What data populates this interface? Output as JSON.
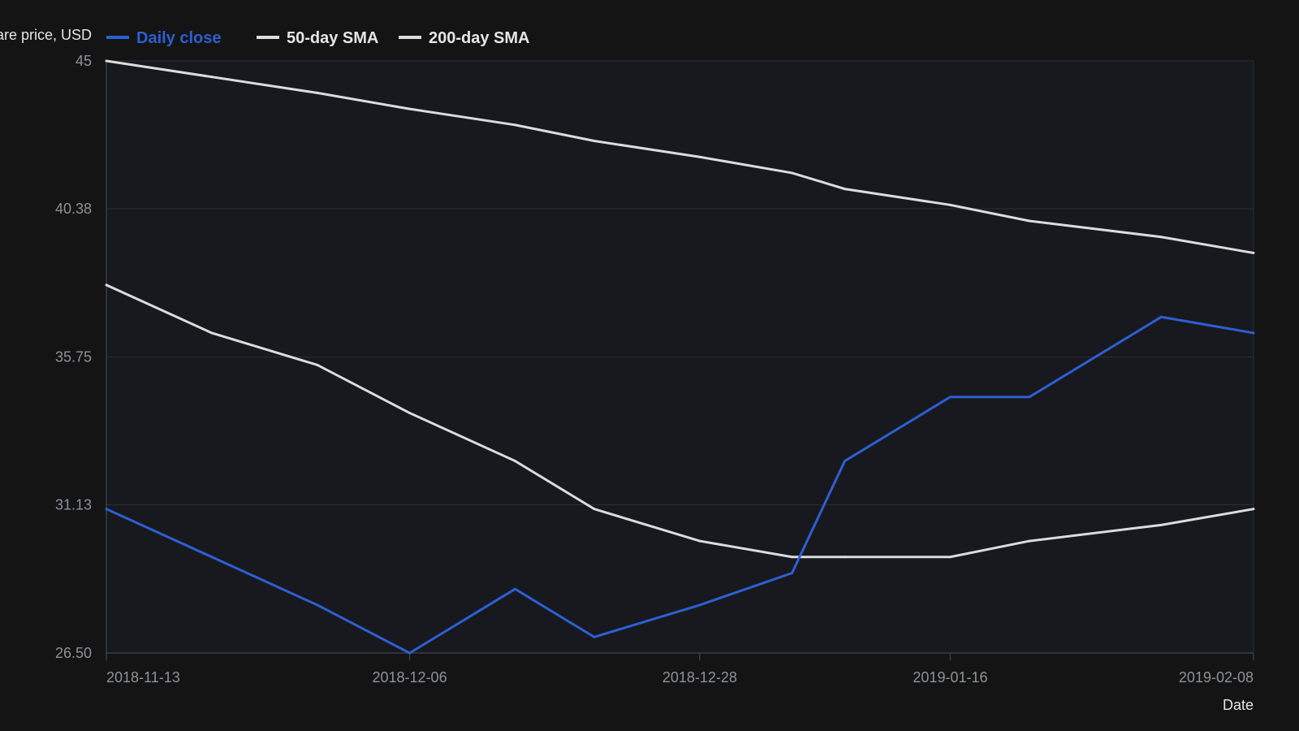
{
  "colors": {
    "background": "#141414",
    "plot_background": "#17191e",
    "grid": "#2b2e35",
    "axis": "#3a3d44",
    "tick_text": "#8d929a",
    "title_text": "#e6e6e6"
  },
  "chart_data": {
    "type": "line",
    "title": "",
    "xlabel": "Date",
    "ylabel": "Share price, USD",
    "ylim": [
      26.5,
      45
    ],
    "yticks": [
      "45",
      "40.38",
      "35.75",
      "31.13",
      "26.50"
    ],
    "ytick_values": [
      45,
      40.38,
      35.75,
      31.13,
      26.5
    ],
    "x": [
      "2018-11-13",
      "2018-11-21",
      "2018-11-29",
      "2018-12-06",
      "2018-12-14",
      "2018-12-20",
      "2018-12-28",
      "2019-01-04",
      "2019-01-08",
      "2019-01-16",
      "2019-01-22",
      "2019-02-01",
      "2019-02-08"
    ],
    "xticks": [
      "2018-11-13",
      "2018-12-06",
      "2018-12-28",
      "2019-01-16",
      "2019-02-08"
    ],
    "grid": true,
    "legend_position": "top-left",
    "series": [
      {
        "name": "Daily close",
        "color": "#2d5fd3",
        "values": [
          31.0,
          29.5,
          28.0,
          26.5,
          28.5,
          27.0,
          28.0,
          29.0,
          32.5,
          34.5,
          34.5,
          37.0,
          36.5
        ]
      },
      {
        "name": "50-day SMA",
        "color": "#dcdcdc",
        "values": [
          38.0,
          36.5,
          35.5,
          34.0,
          32.5,
          31.0,
          30.0,
          29.5,
          29.5,
          29.5,
          30.0,
          30.5,
          31.0
        ]
      },
      {
        "name": "200-day SMA",
        "color": "#dcdcdc",
        "values": [
          45.0,
          44.5,
          44.0,
          43.5,
          43.0,
          42.5,
          42.0,
          41.5,
          41.0,
          40.5,
          40.0,
          39.5,
          39.0
        ]
      }
    ]
  }
}
